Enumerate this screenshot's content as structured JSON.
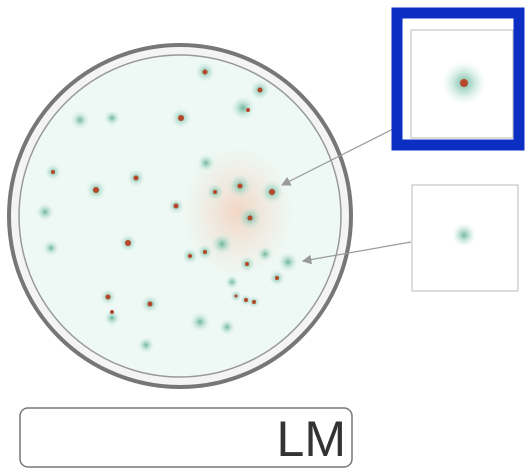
{
  "label_box": {
    "text": "LM"
  }
}
